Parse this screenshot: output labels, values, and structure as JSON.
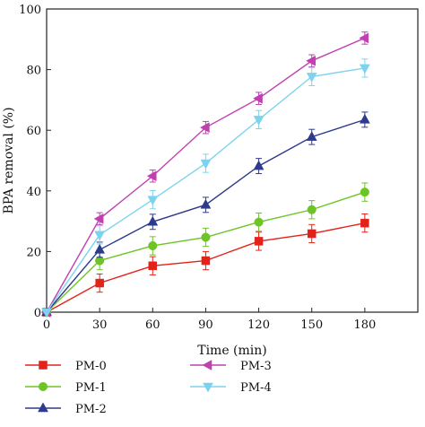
{
  "chart_data": {
    "type": "line",
    "xlabel": "Time (min)",
    "ylabel": "BPA removal (%)",
    "x": [
      0,
      30,
      60,
      90,
      120,
      150,
      180
    ],
    "xticks": [
      "0",
      "30",
      "60",
      "90",
      "120",
      "150",
      "180"
    ],
    "yticks": [
      "0",
      "20",
      "40",
      "60",
      "80",
      "100"
    ],
    "xlim": [
      0,
      210
    ],
    "ylim": [
      0,
      100
    ],
    "grid": false,
    "legend_position": "bottom-left",
    "series": [
      {
        "name": "PM-0",
        "color": "#e2231a",
        "marker": "square",
        "values": [
          0,
          9.6,
          15.3,
          17.0,
          23.4,
          25.9,
          29.4
        ],
        "errors": [
          0,
          3,
          3,
          3,
          3,
          3,
          3
        ]
      },
      {
        "name": "PM-1",
        "color": "#6cc524",
        "marker": "circle",
        "values": [
          0,
          17.0,
          21.9,
          24.7,
          29.7,
          33.8,
          39.6
        ],
        "errors": [
          0,
          3,
          3,
          3,
          3,
          3,
          3
        ]
      },
      {
        "name": "PM-2",
        "color": "#2e3a8c",
        "marker": "triangle-up",
        "values": [
          0,
          20.6,
          29.8,
          35.4,
          48.2,
          57.8,
          63.5
        ],
        "errors": [
          0,
          2.5,
          2.5,
          2.5,
          2.5,
          2.5,
          2.5
        ]
      },
      {
        "name": "PM-3",
        "color": "#c040b0",
        "marker": "triangle-left",
        "values": [
          0,
          30.8,
          44.9,
          60.9,
          70.5,
          82.9,
          90.4
        ],
        "errors": [
          0,
          2,
          2,
          2,
          2,
          2,
          2
        ]
      },
      {
        "name": "PM-4",
        "color": "#7dd3ee",
        "marker": "triangle-down",
        "values": [
          0,
          25.5,
          37.1,
          49.1,
          63.5,
          77.7,
          80.5
        ],
        "errors": [
          0,
          3,
          3,
          3,
          3,
          3,
          3
        ]
      }
    ]
  }
}
